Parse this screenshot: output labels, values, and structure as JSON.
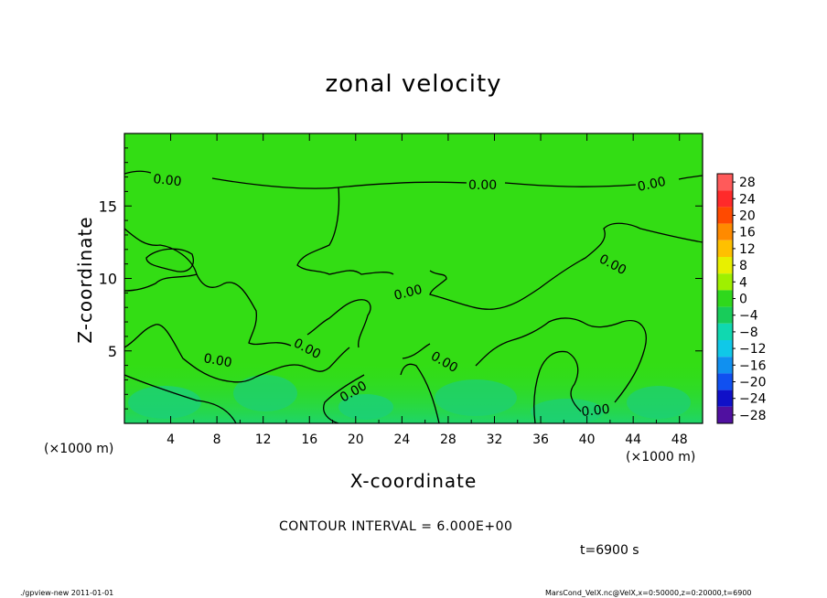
{
  "chart_data": {
    "type": "heatmap",
    "title": "zonal velocity",
    "xlabel": "X-coordinate",
    "ylabel": "Z-coordinate",
    "x_unit_label": "(×1000 m)",
    "xlim": [
      0,
      50
    ],
    "ylim": [
      0,
      20
    ],
    "x_ticks": [
      4,
      8,
      12,
      16,
      20,
      24,
      28,
      32,
      36,
      40,
      44,
      48
    ],
    "y_ticks": [
      5,
      10,
      15
    ],
    "contour_label": "0.00",
    "contour_interval_text": "CONTOUR INTERVAL = 6.000E+00",
    "time_text": "t=6900 s",
    "colorbar": {
      "levels": [
        28,
        24,
        20,
        16,
        12,
        8,
        4,
        0,
        -4,
        -8,
        -12,
        -16,
        -20,
        -24,
        -28
      ],
      "colors": [
        "#ff5a5a",
        "#ff2a2a",
        "#ff4a00",
        "#ff8a00",
        "#ffc000",
        "#e8f000",
        "#9ff000",
        "#2fd81c",
        "#18cc5a",
        "#10d8b0",
        "#10c8e8",
        "#1090f0",
        "#1050f0",
        "#1010c8",
        "#5010a0"
      ]
    },
    "field_description_values": {
      "background": 0,
      "lower_layer_min": -4
    }
  },
  "footer": {
    "left": "./gpview-new  2011-01-01",
    "right": "MarsCond_VelX.nc@VelX,x=0:50000,z=0:20000,t=6900"
  }
}
